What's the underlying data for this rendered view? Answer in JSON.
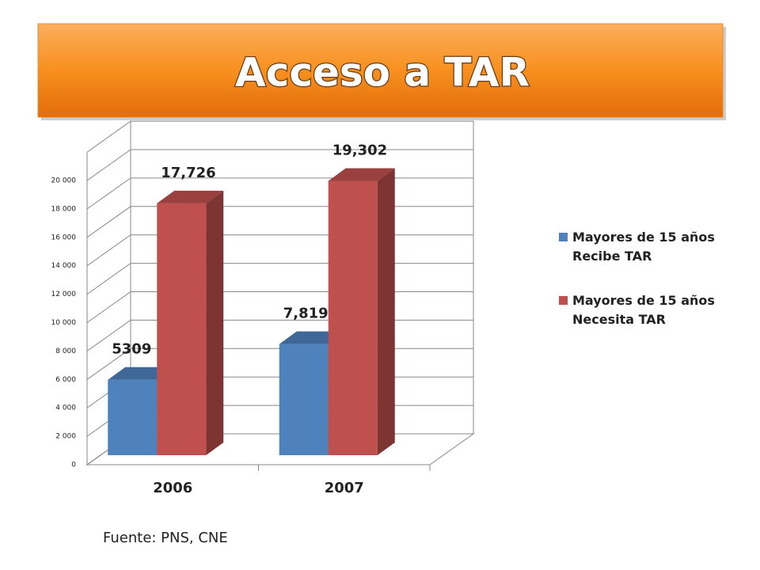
{
  "chart_data": {
    "type": "bar3d",
    "title": "Acceso a TAR",
    "source": "Fuente: PNS, CNE",
    "categories": [
      "2006",
      "2007"
    ],
    "series": [
      {
        "name": "Mayores de 15 años Recibe TAR",
        "color": "#4f81bd",
        "values": [
          5309,
          7819
        ],
        "value_labels": [
          "5309",
          "7,819"
        ]
      },
      {
        "name": "Mayores de 15 años Necesita TAR",
        "color": "#c0504d",
        "values": [
          17726,
          19302
        ],
        "value_labels": [
          "17,726",
          "19,302"
        ]
      }
    ],
    "ylim": [
      0,
      22000
    ],
    "yticks": [
      0,
      {
        "value": 2000,
        "label": "2 000"
      },
      {
        "value": 4000,
        "label": "4 000"
      },
      {
        "value": 6000,
        "label": "6 000"
      },
      {
        "value": 8000,
        "label": "8 000"
      },
      {
        "value": 10000,
        "label": "10 000"
      },
      {
        "value": 12000,
        "label": "12 000"
      },
      {
        "value": 14000,
        "label": "14 000"
      },
      {
        "value": 16000,
        "label": "16 000"
      },
      {
        "value": 18000,
        "label": "18 000"
      },
      {
        "value": 20000,
        "label": "20 000"
      }
    ],
    "grid": true,
    "legend": "right"
  }
}
